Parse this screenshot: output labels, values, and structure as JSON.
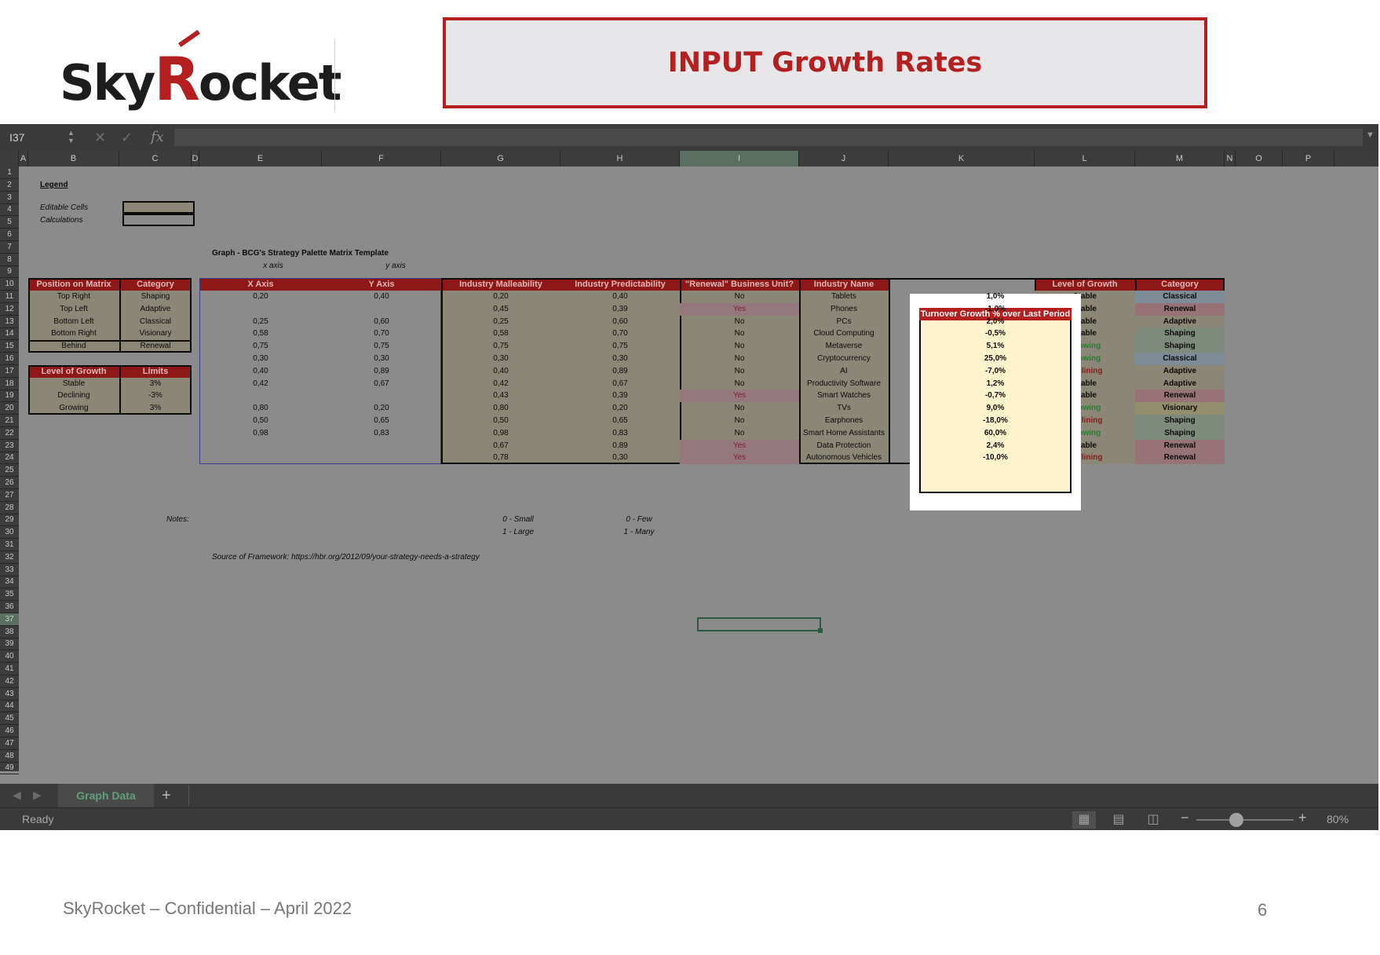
{
  "slide": {
    "logo_text_1": "Sky",
    "logo_text_r": "R",
    "logo_text_2": "ocket",
    "title": "INPUT Growth Rates",
    "footer": "SkyRocket – Confidential – April 2022",
    "page_number": "6"
  },
  "excel": {
    "name_box": "I37",
    "fx": "fx",
    "sheet_tab": "Graph Data",
    "status": "Ready",
    "zoom": "80%",
    "selected_column": "I",
    "selected_row": "37",
    "columns": [
      "A",
      "B",
      "C",
      "D",
      "E",
      "F",
      "G",
      "H",
      "I",
      "J",
      "K",
      "L",
      "M",
      "N",
      "O",
      "P"
    ],
    "rows": [
      "1",
      "2",
      "3",
      "4",
      "5",
      "6",
      "7",
      "8",
      "9",
      "10",
      "11",
      "12",
      "13",
      "14",
      "15",
      "16",
      "17",
      "18",
      "19",
      "20",
      "21",
      "22",
      "23",
      "24",
      "25",
      "26",
      "27",
      "28",
      "29",
      "30",
      "31",
      "32",
      "33",
      "34",
      "35",
      "36",
      "37",
      "38",
      "39",
      "40",
      "41",
      "42",
      "43",
      "44",
      "45",
      "46",
      "47",
      "48",
      "49"
    ]
  },
  "legend": {
    "title": "Legend",
    "editable": "Editable Cells",
    "calculations": "Calculations"
  },
  "position_table": {
    "headers": [
      "Position on Matrix",
      "Category"
    ],
    "rows": [
      [
        "Top Right",
        "Shaping"
      ],
      [
        "Top Left",
        "Adaptive"
      ],
      [
        "Bottom Left",
        "Classical"
      ],
      [
        "Bottom Right",
        "Visionary"
      ],
      [
        "Behind",
        "Renewal"
      ]
    ]
  },
  "growth_limits": {
    "headers": [
      "Level of Growth",
      "Limits"
    ],
    "rows": [
      [
        "Stable",
        "3%"
      ],
      [
        "Declining",
        "-3%"
      ],
      [
        "Growing",
        "3%"
      ]
    ]
  },
  "graph": {
    "title": "Graph - BCG's Strategy Palette Matrix Template",
    "xaxis_label": "x axis",
    "yaxis_label": "y axis",
    "headers": [
      "X Axis",
      "Y Axis"
    ],
    "rows": [
      [
        "0,20",
        "0,40"
      ],
      [
        "",
        ""
      ],
      [
        "0,25",
        "0,60"
      ],
      [
        "0,58",
        "0,70"
      ],
      [
        "0,75",
        "0,75"
      ],
      [
        "0,30",
        "0,30"
      ],
      [
        "0,40",
        "0,89"
      ],
      [
        "0,42",
        "0,67"
      ],
      [
        "",
        ""
      ],
      [
        "0,80",
        "0,20"
      ],
      [
        "0,50",
        "0,65"
      ],
      [
        "0,98",
        "0,83"
      ],
      [
        "",
        ""
      ],
      [
        "",
        ""
      ]
    ]
  },
  "main_table": {
    "headers": [
      "Industry Malleability",
      "Industry Predictability",
      "\"Renewal\" Business Unit?",
      "Industry Name",
      "Turnover Growth % over Last Period",
      "Level of Growth",
      "Category"
    ],
    "rows": [
      [
        "0,20",
        "0,40",
        "No",
        "Tablets",
        "1,0%",
        "Stable",
        "Classical"
      ],
      [
        "0,45",
        "0,39",
        "Yes",
        "Phones",
        "-1,0%",
        "Stable",
        "Renewal"
      ],
      [
        "0,25",
        "0,60",
        "No",
        "PCs",
        "2,0%",
        "Stable",
        "Adaptive"
      ],
      [
        "0,58",
        "0,70",
        "No",
        "Cloud Computing",
        "-0,5%",
        "Stable",
        "Shaping"
      ],
      [
        "0,75",
        "0,75",
        "No",
        "Metaverse",
        "5,1%",
        "Growing",
        "Shaping"
      ],
      [
        "0,30",
        "0,30",
        "No",
        "Cryptocurrency",
        "25,0%",
        "Growing",
        "Classical"
      ],
      [
        "0,40",
        "0,89",
        "No",
        "AI",
        "-7,0%",
        "Declining",
        "Adaptive"
      ],
      [
        "0,42",
        "0,67",
        "No",
        "Productivity Software",
        "1,2%",
        "Stable",
        "Adaptive"
      ],
      [
        "0,43",
        "0,39",
        "Yes",
        "Smart Watches",
        "-0,7%",
        "Stable",
        "Renewal"
      ],
      [
        "0,80",
        "0,20",
        "No",
        "TVs",
        "9,0%",
        "Growing",
        "Visionary"
      ],
      [
        "0,50",
        "0,65",
        "No",
        "Earphones",
        "-18,0%",
        "Declining",
        "Shaping"
      ],
      [
        "0,98",
        "0,83",
        "No",
        "Smart Home Assistants",
        "60,0%",
        "Growing",
        "Shaping"
      ],
      [
        "0,67",
        "0,89",
        "Yes",
        "Data Protection",
        "2,4%",
        "Stable",
        "Renewal"
      ],
      [
        "0,78",
        "0,30",
        "Yes",
        "Autonomous Vehicles",
        "-10,0%",
        "Declining",
        "Renewal"
      ]
    ]
  },
  "notes": {
    "label": "Notes:",
    "g1": "0 - Small",
    "g2": "1 - Large",
    "h1": "0 - Few",
    "h2": "1 - Many",
    "source": "Source of Framework: https://hbr.org/2012/09/your-strategy-needs-a-strategy"
  }
}
